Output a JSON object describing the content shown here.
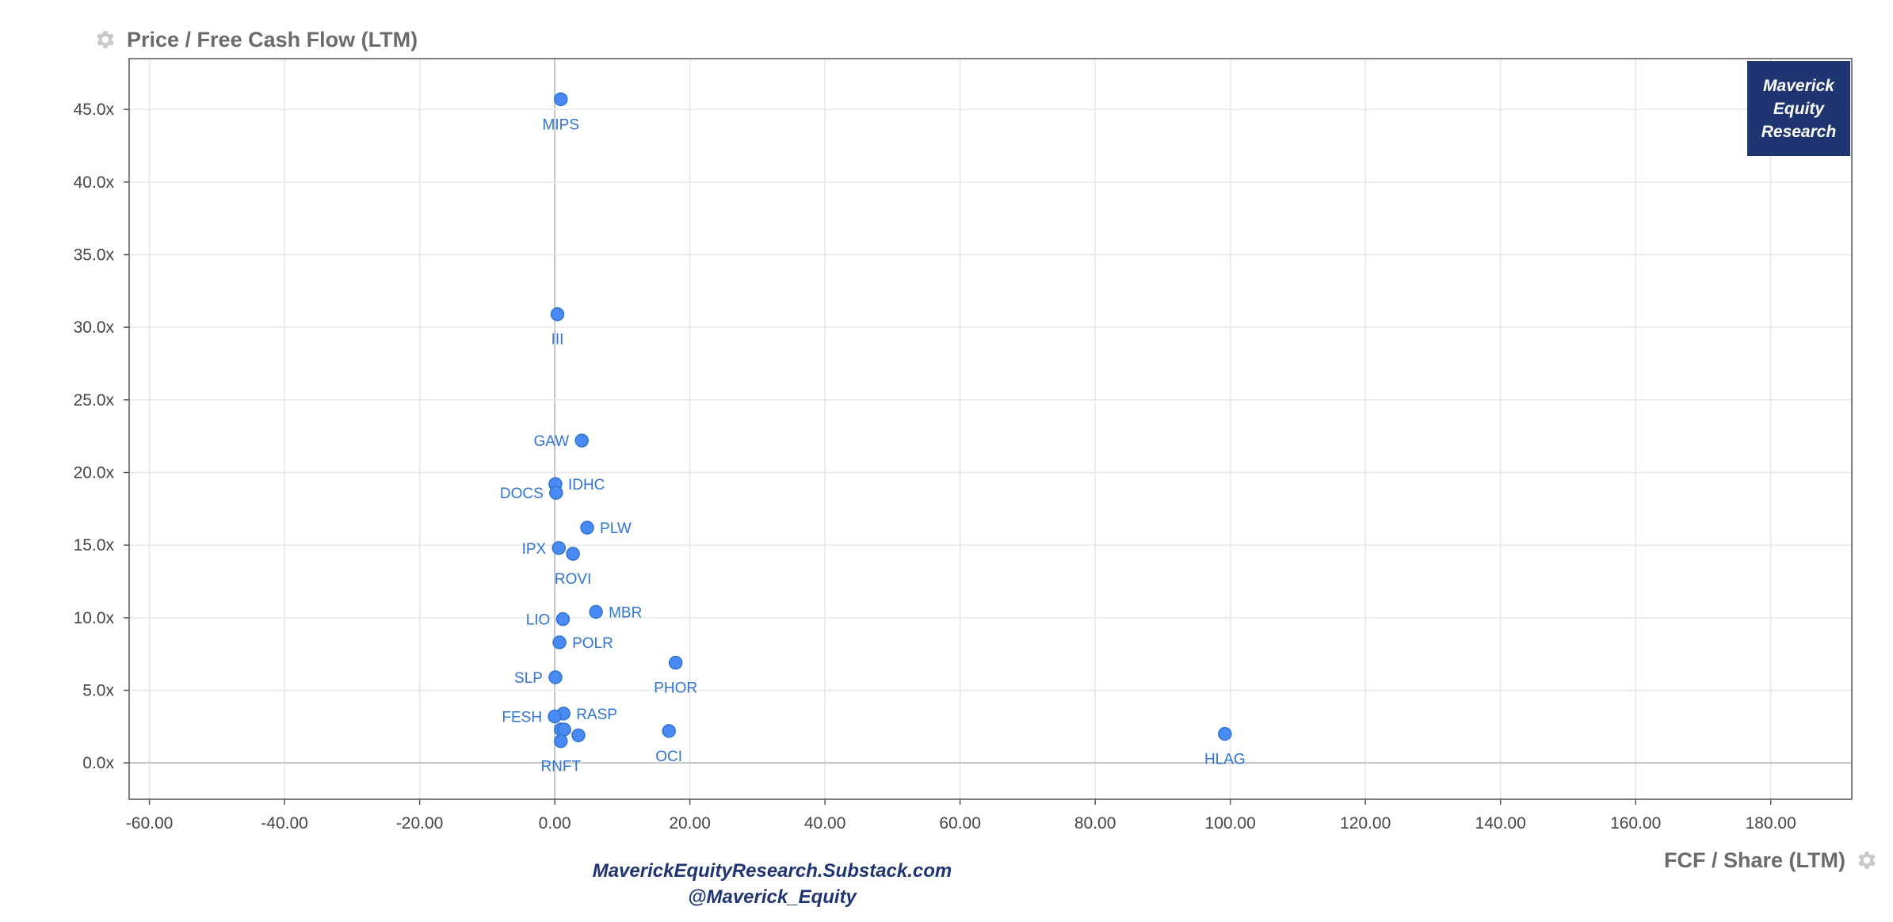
{
  "header": {
    "y_title": "Price / Free Cash Flow (LTM)"
  },
  "footer": {
    "x_title": "FCF / Share (LTM)",
    "source_line1": "MaverickEquityResearch.Substack.com",
    "source_line2": "@Maverick_Equity"
  },
  "logo": {
    "line1": "Maverick",
    "line2": "Equity",
    "line3": "Research"
  },
  "colors": {
    "point": "#4a8af4",
    "point_stroke": "#2f74d0",
    "label": "#2f74d0",
    "badge_bg": "#1f3572",
    "grid": "#e6e6e6",
    "axis_title": "#6b6b6b"
  },
  "icons": {
    "y_settings": "gear-icon",
    "x_settings": "gear-icon"
  },
  "chart_data": {
    "type": "scatter",
    "title": "Price / Free Cash Flow (LTM)",
    "xlabel": "FCF / Share (LTM)",
    "ylabel": "Price / Free Cash Flow (LTM)",
    "xlim": [
      -63,
      192
    ],
    "ylim": [
      -2.5,
      48.5
    ],
    "x_ticks": [
      -60,
      -40,
      -20,
      0,
      20,
      40,
      60,
      80,
      100,
      120,
      140,
      160,
      180
    ],
    "x_tick_labels": [
      "-60.00",
      "-40.00",
      "-20.00",
      "0.00",
      "20.00",
      "40.00",
      "60.00",
      "80.00",
      "100.00",
      "120.00",
      "140.00",
      "160.00",
      "180.00"
    ],
    "y_ticks": [
      0,
      5,
      10,
      15,
      20,
      25,
      30,
      35,
      40,
      45
    ],
    "y_tick_labels": [
      "0.0x",
      "5.0x",
      "10.0x",
      "15.0x",
      "20.0x",
      "25.0x",
      "30.0x",
      "35.0x",
      "40.0x",
      "45.0x"
    ],
    "grid": true,
    "points": [
      {
        "label": "MIPS",
        "x": 0.9,
        "y": 45.7,
        "label_pos": "below"
      },
      {
        "label": "III",
        "x": 0.4,
        "y": 30.9,
        "label_pos": "below"
      },
      {
        "label": "GAW",
        "x": 4.0,
        "y": 22.2,
        "label_pos": "left"
      },
      {
        "label": "IDHC",
        "x": 0.1,
        "y": 19.2,
        "label_pos": "right"
      },
      {
        "label": "DOCS",
        "x": 0.2,
        "y": 18.6,
        "label_pos": "left"
      },
      {
        "label": "PLW",
        "x": 4.8,
        "y": 16.2,
        "label_pos": "right"
      },
      {
        "label": "IPX",
        "x": 0.6,
        "y": 14.8,
        "label_pos": "left"
      },
      {
        "label": "ROVI",
        "x": 2.7,
        "y": 14.4,
        "label_pos": "below"
      },
      {
        "label": "MBR",
        "x": 6.1,
        "y": 10.4,
        "label_pos": "right"
      },
      {
        "label": "LIO",
        "x": 1.2,
        "y": 9.9,
        "label_pos": "left"
      },
      {
        "label": "POLR",
        "x": 0.7,
        "y": 8.3,
        "label_pos": "right"
      },
      {
        "label": "PHOR",
        "x": 17.9,
        "y": 6.9,
        "label_pos": "below"
      },
      {
        "label": "SLP",
        "x": 0.1,
        "y": 5.9,
        "label_pos": "left"
      },
      {
        "label": "RASP",
        "x": 1.3,
        "y": 3.4,
        "label_pos": "right"
      },
      {
        "label": "FESH",
        "x": 0.0,
        "y": 3.2,
        "label_pos": "left"
      },
      {
        "label": "",
        "x": 0.9,
        "y": 2.3,
        "label_pos": "none"
      },
      {
        "label": "",
        "x": 1.4,
        "y": 2.3,
        "label_pos": "none"
      },
      {
        "label": "",
        "x": 3.5,
        "y": 1.9,
        "label_pos": "none"
      },
      {
        "label": "OCI",
        "x": 16.9,
        "y": 2.2,
        "label_pos": "below"
      },
      {
        "label": "HLAG",
        "x": 99.2,
        "y": 2.0,
        "label_pos": "below"
      },
      {
        "label": "RNFT",
        "x": 0.9,
        "y": 1.5,
        "label_pos": "below"
      }
    ]
  }
}
